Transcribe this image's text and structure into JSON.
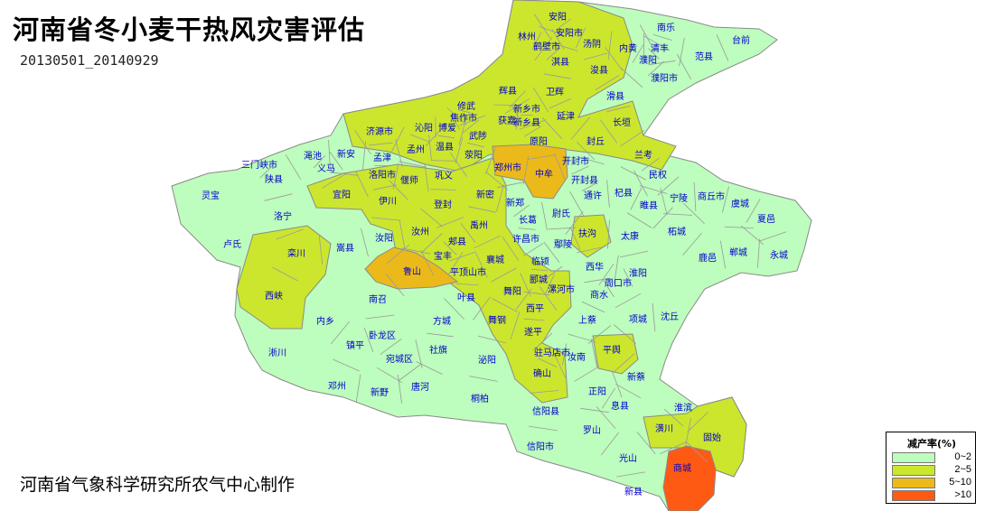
{
  "title": "河南省冬小麦干热风灾害评估",
  "date_range": "20130501_20140929",
  "credit": "河南省气象科学研究所农气中心制作",
  "legend": {
    "title": "减产率(%)",
    "items": [
      {
        "label": "0~2",
        "color": "#bdfdbd"
      },
      {
        "label": "2~5",
        "color": "#cce62e"
      },
      {
        "label": "5~10",
        "color": "#ebba1a"
      },
      {
        "label": ">10",
        "color": "#ff5a14"
      }
    ]
  },
  "counties": [
    {
      "name": "安阳",
      "class": 1
    },
    {
      "name": "林州",
      "class": 1
    },
    {
      "name": "安阳市",
      "class": 1
    },
    {
      "name": "鹤壁市",
      "class": 1
    },
    {
      "name": "汤阴",
      "class": 1
    },
    {
      "name": "南乐",
      "class": 0
    },
    {
      "name": "内黄",
      "class": 1
    },
    {
      "name": "清丰",
      "class": 0
    },
    {
      "name": "台前",
      "class": 0
    },
    {
      "name": "范县",
      "class": 0
    },
    {
      "name": "濮阳",
      "class": 0
    },
    {
      "name": "濮阳市",
      "class": 0
    },
    {
      "name": "淇县",
      "class": 1
    },
    {
      "name": "浚县",
      "class": 0
    },
    {
      "name": "滑县",
      "class": 0
    },
    {
      "name": "卫辉",
      "class": 1
    },
    {
      "name": "辉县",
      "class": 1
    },
    {
      "name": "修武",
      "class": 1
    },
    {
      "name": "焦作市",
      "class": 1
    },
    {
      "name": "新乡市",
      "class": 1
    },
    {
      "name": "获嘉",
      "class": 1
    },
    {
      "name": "新乡县",
      "class": 1
    },
    {
      "name": "延津",
      "class": 1
    },
    {
      "name": "长垣",
      "class": 1
    },
    {
      "name": "济源市",
      "class": 1
    },
    {
      "name": "沁阳",
      "class": 1
    },
    {
      "name": "博爱",
      "class": 1
    },
    {
      "name": "武陟",
      "class": 1
    },
    {
      "name": "原阳",
      "class": 1
    },
    {
      "name": "封丘",
      "class": 1
    },
    {
      "name": "孟州",
      "class": 1
    },
    {
      "name": "温县",
      "class": 1
    },
    {
      "name": "孟津",
      "class": 1
    },
    {
      "name": "渑池",
      "class": 0
    },
    {
      "name": "义马",
      "class": 0
    },
    {
      "name": "新安",
      "class": 0
    },
    {
      "name": "洛阳市",
      "class": 0
    },
    {
      "name": "三门峡市",
      "class": 0
    },
    {
      "name": "陕县",
      "class": 0
    },
    {
      "name": "灵宝",
      "class": 0
    },
    {
      "name": "偃师",
      "class": 1
    },
    {
      "name": "巩义",
      "class": 1
    },
    {
      "name": "荥阳",
      "class": 1
    },
    {
      "name": "郑州市",
      "class": 2
    },
    {
      "name": "中牟",
      "class": 2
    },
    {
      "name": "开封市",
      "class": 1
    },
    {
      "name": "开封县",
      "class": 1
    },
    {
      "name": "兰考",
      "class": 1
    },
    {
      "name": "民权",
      "class": 0
    },
    {
      "name": "宜阳",
      "class": 1
    },
    {
      "name": "伊川",
      "class": 1
    },
    {
      "name": "登封",
      "class": 1
    },
    {
      "name": "新密",
      "class": 1
    },
    {
      "name": "新郑",
      "class": 1
    },
    {
      "name": "尉氏",
      "class": 0
    },
    {
      "name": "通许",
      "class": 0
    },
    {
      "name": "杞县",
      "class": 0
    },
    {
      "name": "睢县",
      "class": 0
    },
    {
      "name": "宁陵",
      "class": 0
    },
    {
      "name": "商丘市",
      "class": 0
    },
    {
      "name": "虞城",
      "class": 0
    },
    {
      "name": "夏邑",
      "class": 0
    },
    {
      "name": "永城",
      "class": 0
    },
    {
      "name": "洛宁",
      "class": 0
    },
    {
      "name": "卢氏",
      "class": 0
    },
    {
      "name": "嵩县",
      "class": 0
    },
    {
      "name": "汝阳",
      "class": 0
    },
    {
      "name": "汝州",
      "class": 1
    },
    {
      "name": "禹州",
      "class": 1
    },
    {
      "name": "长葛",
      "class": 1
    },
    {
      "name": "郏县",
      "class": 1
    },
    {
      "name": "许昌市",
      "class": 1
    },
    {
      "name": "鄢陵",
      "class": 0
    },
    {
      "name": "扶沟",
      "class": 1
    },
    {
      "name": "太康",
      "class": 0
    },
    {
      "name": "柘城",
      "class": 0
    },
    {
      "name": "鹿邑",
      "class": 0
    },
    {
      "name": "郸城",
      "class": 0
    },
    {
      "name": "栾川",
      "class": 1
    },
    {
      "name": "鲁山",
      "class": 2
    },
    {
      "name": "宝丰",
      "class": 1
    },
    {
      "name": "平顶山市",
      "class": 1
    },
    {
      "name": "襄城",
      "class": 1
    },
    {
      "name": "临颍",
      "class": 0
    },
    {
      "name": "西华",
      "class": 0
    },
    {
      "name": "淮阳",
      "class": 0
    },
    {
      "name": "郾城",
      "class": 1
    },
    {
      "name": "漯河市",
      "class": 1
    },
    {
      "name": "周口市",
      "class": 0
    },
    {
      "name": "商水",
      "class": 0
    },
    {
      "name": "西峡",
      "class": 1
    },
    {
      "name": "南召",
      "class": 0
    },
    {
      "name": "叶县",
      "class": 0
    },
    {
      "name": "舞阳",
      "class": 1
    },
    {
      "name": "项城",
      "class": 0
    },
    {
      "name": "沈丘",
      "class": 0
    },
    {
      "name": "内乡",
      "class": 0
    },
    {
      "name": "方城",
      "class": 0
    },
    {
      "name": "舞钢",
      "class": 1
    },
    {
      "name": "西平",
      "class": 1
    },
    {
      "name": "上蔡",
      "class": 0
    },
    {
      "name": "淅川",
      "class": 0
    },
    {
      "name": "镇平",
      "class": 0
    },
    {
      "name": "卧龙区",
      "class": 0
    },
    {
      "name": "社旗",
      "class": 0
    },
    {
      "name": "遂平",
      "class": 1
    },
    {
      "name": "驻马店市",
      "class": 1
    },
    {
      "name": "平舆",
      "class": 1
    },
    {
      "name": "宛城区",
      "class": 0
    },
    {
      "name": "泌阳",
      "class": 0
    },
    {
      "name": "汝南",
      "class": 0
    },
    {
      "name": "确山",
      "class": 1
    },
    {
      "name": "新蔡",
      "class": 0
    },
    {
      "name": "邓州",
      "class": 0
    },
    {
      "name": "新野",
      "class": 0
    },
    {
      "name": "唐河",
      "class": 0
    },
    {
      "name": "桐柏",
      "class": 0
    },
    {
      "name": "正阳",
      "class": 0
    },
    {
      "name": "息县",
      "class": 0
    },
    {
      "name": "淮滨",
      "class": 0
    },
    {
      "name": "信阳县",
      "class": 0
    },
    {
      "name": "罗山",
      "class": 0
    },
    {
      "name": "潢川",
      "class": 1
    },
    {
      "name": "固始",
      "class": 1
    },
    {
      "name": "信阳市",
      "class": 0
    },
    {
      "name": "光山",
      "class": 0
    },
    {
      "name": "商城",
      "class": 3
    },
    {
      "name": "新县",
      "class": 0
    }
  ]
}
